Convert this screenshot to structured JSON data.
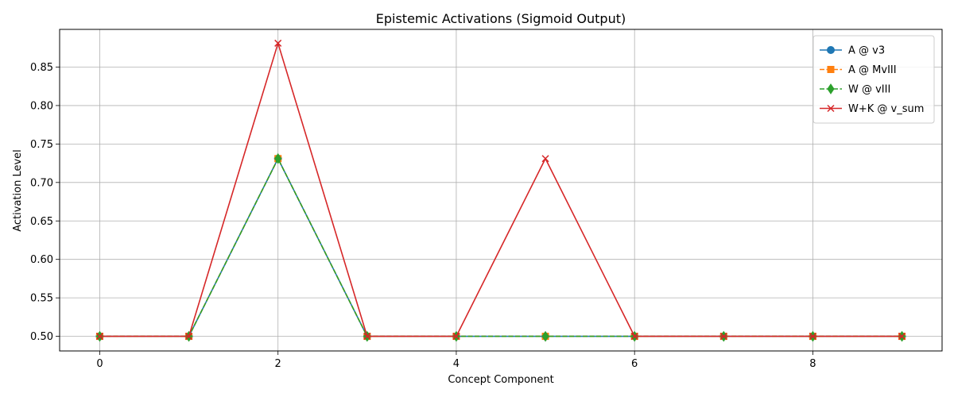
{
  "chart_data": {
    "type": "line",
    "title": "Epistemic Activations (Sigmoid Output)",
    "xlabel": "Concept Component",
    "ylabel": "Activation Level",
    "x": [
      0,
      1,
      2,
      3,
      4,
      5,
      6,
      7,
      8,
      9
    ],
    "xlim": [
      -0.45,
      9.45
    ],
    "ylim": [
      0.481,
      0.899
    ],
    "xticks": [
      0,
      2,
      4,
      6,
      8
    ],
    "xtick_labels": [
      "0",
      "2",
      "4",
      "6",
      "8"
    ],
    "yticks": [
      0.5,
      0.55,
      0.6,
      0.65,
      0.7,
      0.75,
      0.8,
      0.85
    ],
    "ytick_labels": [
      "0.50",
      "0.55",
      "0.60",
      "0.65",
      "0.70",
      "0.75",
      "0.80",
      "0.85"
    ],
    "grid": true,
    "legend_position": "top-right",
    "series": [
      {
        "name": "A @ v3",
        "color": "#1f77b4",
        "marker": "circle",
        "linestyle": "solid",
        "values": [
          0.5,
          0.5,
          0.731,
          0.5,
          0.5,
          0.5,
          0.5,
          0.5,
          0.5,
          0.5
        ]
      },
      {
        "name": "A @ MvIII",
        "color": "#ff7f0e",
        "marker": "square",
        "linestyle": "dashed",
        "values": [
          0.5,
          0.5,
          0.731,
          0.5,
          0.5,
          0.5,
          0.5,
          0.5,
          0.5,
          0.5
        ]
      },
      {
        "name": "W @ vIII",
        "color": "#2ca02c",
        "marker": "thin-diamond",
        "linestyle": "dashed",
        "values": [
          0.5,
          0.5,
          0.731,
          0.5,
          0.5,
          0.5,
          0.5,
          0.5,
          0.5,
          0.5
        ]
      },
      {
        "name": "W+K @ v_sum",
        "color": "#d62728",
        "marker": "x",
        "linestyle": "solid",
        "values": [
          0.5,
          0.5,
          0.881,
          0.5,
          0.5,
          0.731,
          0.5,
          0.5,
          0.5,
          0.5
        ]
      }
    ]
  }
}
